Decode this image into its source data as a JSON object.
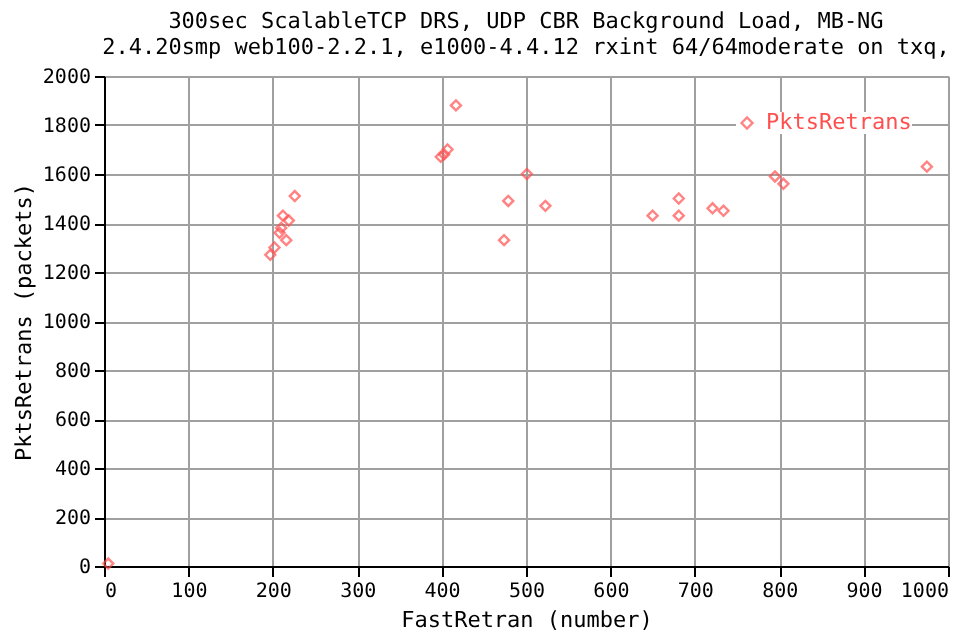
{
  "chart_data": {
    "type": "scatter",
    "title": [
      "300sec ScalableTCP DRS, UDP CBR Background Load, MB-NG",
      "2.4.20smp web100-2.2.1, e1000-4.4.12 rxint 64/64moderate on txq,"
    ],
    "xlabel": "FastRetran (number)",
    "ylabel": "PktsRetrans (packets)",
    "series": [
      {
        "name": "PktsRetrans",
        "color": "#ff5050",
        "x": [
          5,
          197,
          202,
          208,
          210,
          212,
          216,
          219,
          226,
          399,
          403,
          407,
          417,
          474,
          479,
          501,
          523,
          650,
          681,
          681,
          721,
          734,
          795,
          805,
          975
        ],
        "values": [
          10,
          1270,
          1300,
          1360,
          1380,
          1430,
          1330,
          1410,
          1510,
          1670,
          1680,
          1700,
          1880,
          1330,
          1490,
          1600,
          1470,
          1430,
          1500,
          1430,
          1460,
          1450,
          1590,
          1560,
          1630
        ]
      }
    ],
    "xlim": [
      0,
      1000
    ],
    "xticks": [
      0,
      100,
      200,
      300,
      400,
      500,
      600,
      700,
      800,
      900,
      1000
    ],
    "ylim": [
      0,
      2000
    ],
    "yticks": [
      0,
      200,
      400,
      600,
      800,
      1000,
      1200,
      1400,
      1600,
      1800,
      2000
    ],
    "grid": true,
    "legend": "top right",
    "marker": "diamond"
  }
}
